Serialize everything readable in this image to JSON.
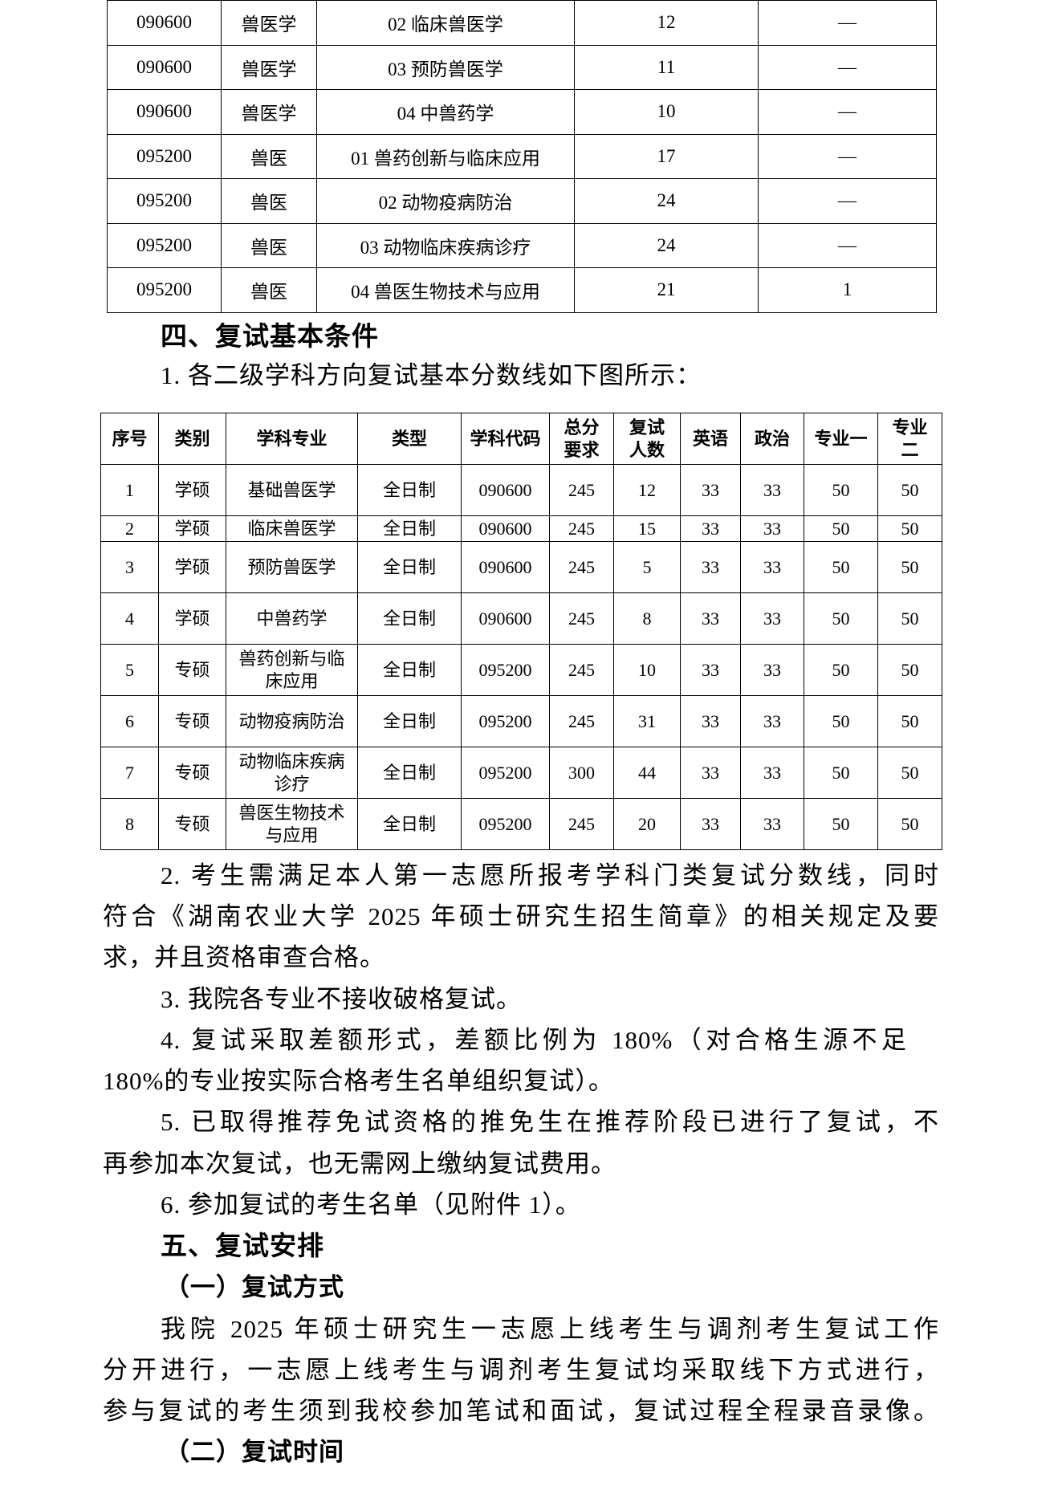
{
  "table1": {
    "rows": [
      [
        "090600",
        "兽医学",
        "02 临床兽医学",
        "12",
        "—"
      ],
      [
        "090600",
        "兽医学",
        "03 预防兽医学",
        "11",
        "—"
      ],
      [
        "090600",
        "兽医学",
        "04 中兽药学",
        "10",
        "—"
      ],
      [
        "095200",
        "兽医",
        "01 兽药创新与临床应用",
        "17",
        "—"
      ],
      [
        "095200",
        "兽医",
        "02 动物疫病防治",
        "24",
        "—"
      ],
      [
        "095200",
        "兽医",
        "03 动物临床疾病诊疗",
        "24",
        "—"
      ],
      [
        "095200",
        "兽医",
        "04 兽医生物技术与应用",
        "21",
        "1"
      ]
    ]
  },
  "section4": {
    "heading": "四、复试基本条件",
    "item1": "1. 各二级学科方向复试基本分数线如下图所示："
  },
  "table2": {
    "headers": [
      "序号",
      "类别",
      "学科专业",
      "类型",
      "学科代码",
      "总分要求",
      "复试人数",
      "英语",
      "政治",
      "专业一",
      "专业二"
    ],
    "rows": [
      [
        "1",
        "学硕",
        "基础兽医学",
        "全日制",
        "090600",
        "245",
        "12",
        "33",
        "33",
        "50",
        "50"
      ],
      [
        "2",
        "学硕",
        "临床兽医学",
        "全日制",
        "090600",
        "245",
        "15",
        "33",
        "33",
        "50",
        "50"
      ],
      [
        "3",
        "学硕",
        "预防兽医学",
        "全日制",
        "090600",
        "245",
        "5",
        "33",
        "33",
        "50",
        "50"
      ],
      [
        "4",
        "学硕",
        "中兽药学",
        "全日制",
        "090600",
        "245",
        "8",
        "33",
        "33",
        "50",
        "50"
      ],
      [
        "5",
        "专硕",
        "兽药创新与临床应用",
        "全日制",
        "095200",
        "245",
        "10",
        "33",
        "33",
        "50",
        "50"
      ],
      [
        "6",
        "专硕",
        "动物疫病防治",
        "全日制",
        "095200",
        "245",
        "31",
        "33",
        "33",
        "50",
        "50"
      ],
      [
        "7",
        "专硕",
        "动物临床疾病诊疗",
        "全日制",
        "095200",
        "300",
        "44",
        "33",
        "33",
        "50",
        "50"
      ],
      [
        "8",
        "专硕",
        "兽医生物技术与应用",
        "全日制",
        "095200",
        "245",
        "20",
        "33",
        "33",
        "50",
        "50"
      ]
    ]
  },
  "lines": [
    "2. 考生需满足本人第一志愿所报考学科门类复试分数线，同时",
    "符合《湖南农业大学 2025 年硕士研究生招生简章》的相关规定及要",
    "求，并且资格审查合格。",
    "3. 我院各专业不接收破格复试。",
    "4. 复试采取差额形式，差额比例为 180%（对合格生源不足",
    "180%的专业按实际合格考生名单组织复试）。",
    "5. 已取得推荐免试资格的推免生在推荐阶段已进行了复试，不",
    "再参加本次复试，也无需网上缴纳复试费用。",
    "6. 参加复试的考生名单（见附件 1）。",
    "五、复试安排",
    "（一）复试方式",
    "我院 2025 年硕士研究生一志愿上线考生与调剂考生复试工作",
    "分开进行，一志愿上线考生与调剂考生复试均采取线下方式进行，",
    "参与复试的考生须到我校参加笔试和面试，复试过程全程录音录像。",
    "（二）复试时间"
  ]
}
